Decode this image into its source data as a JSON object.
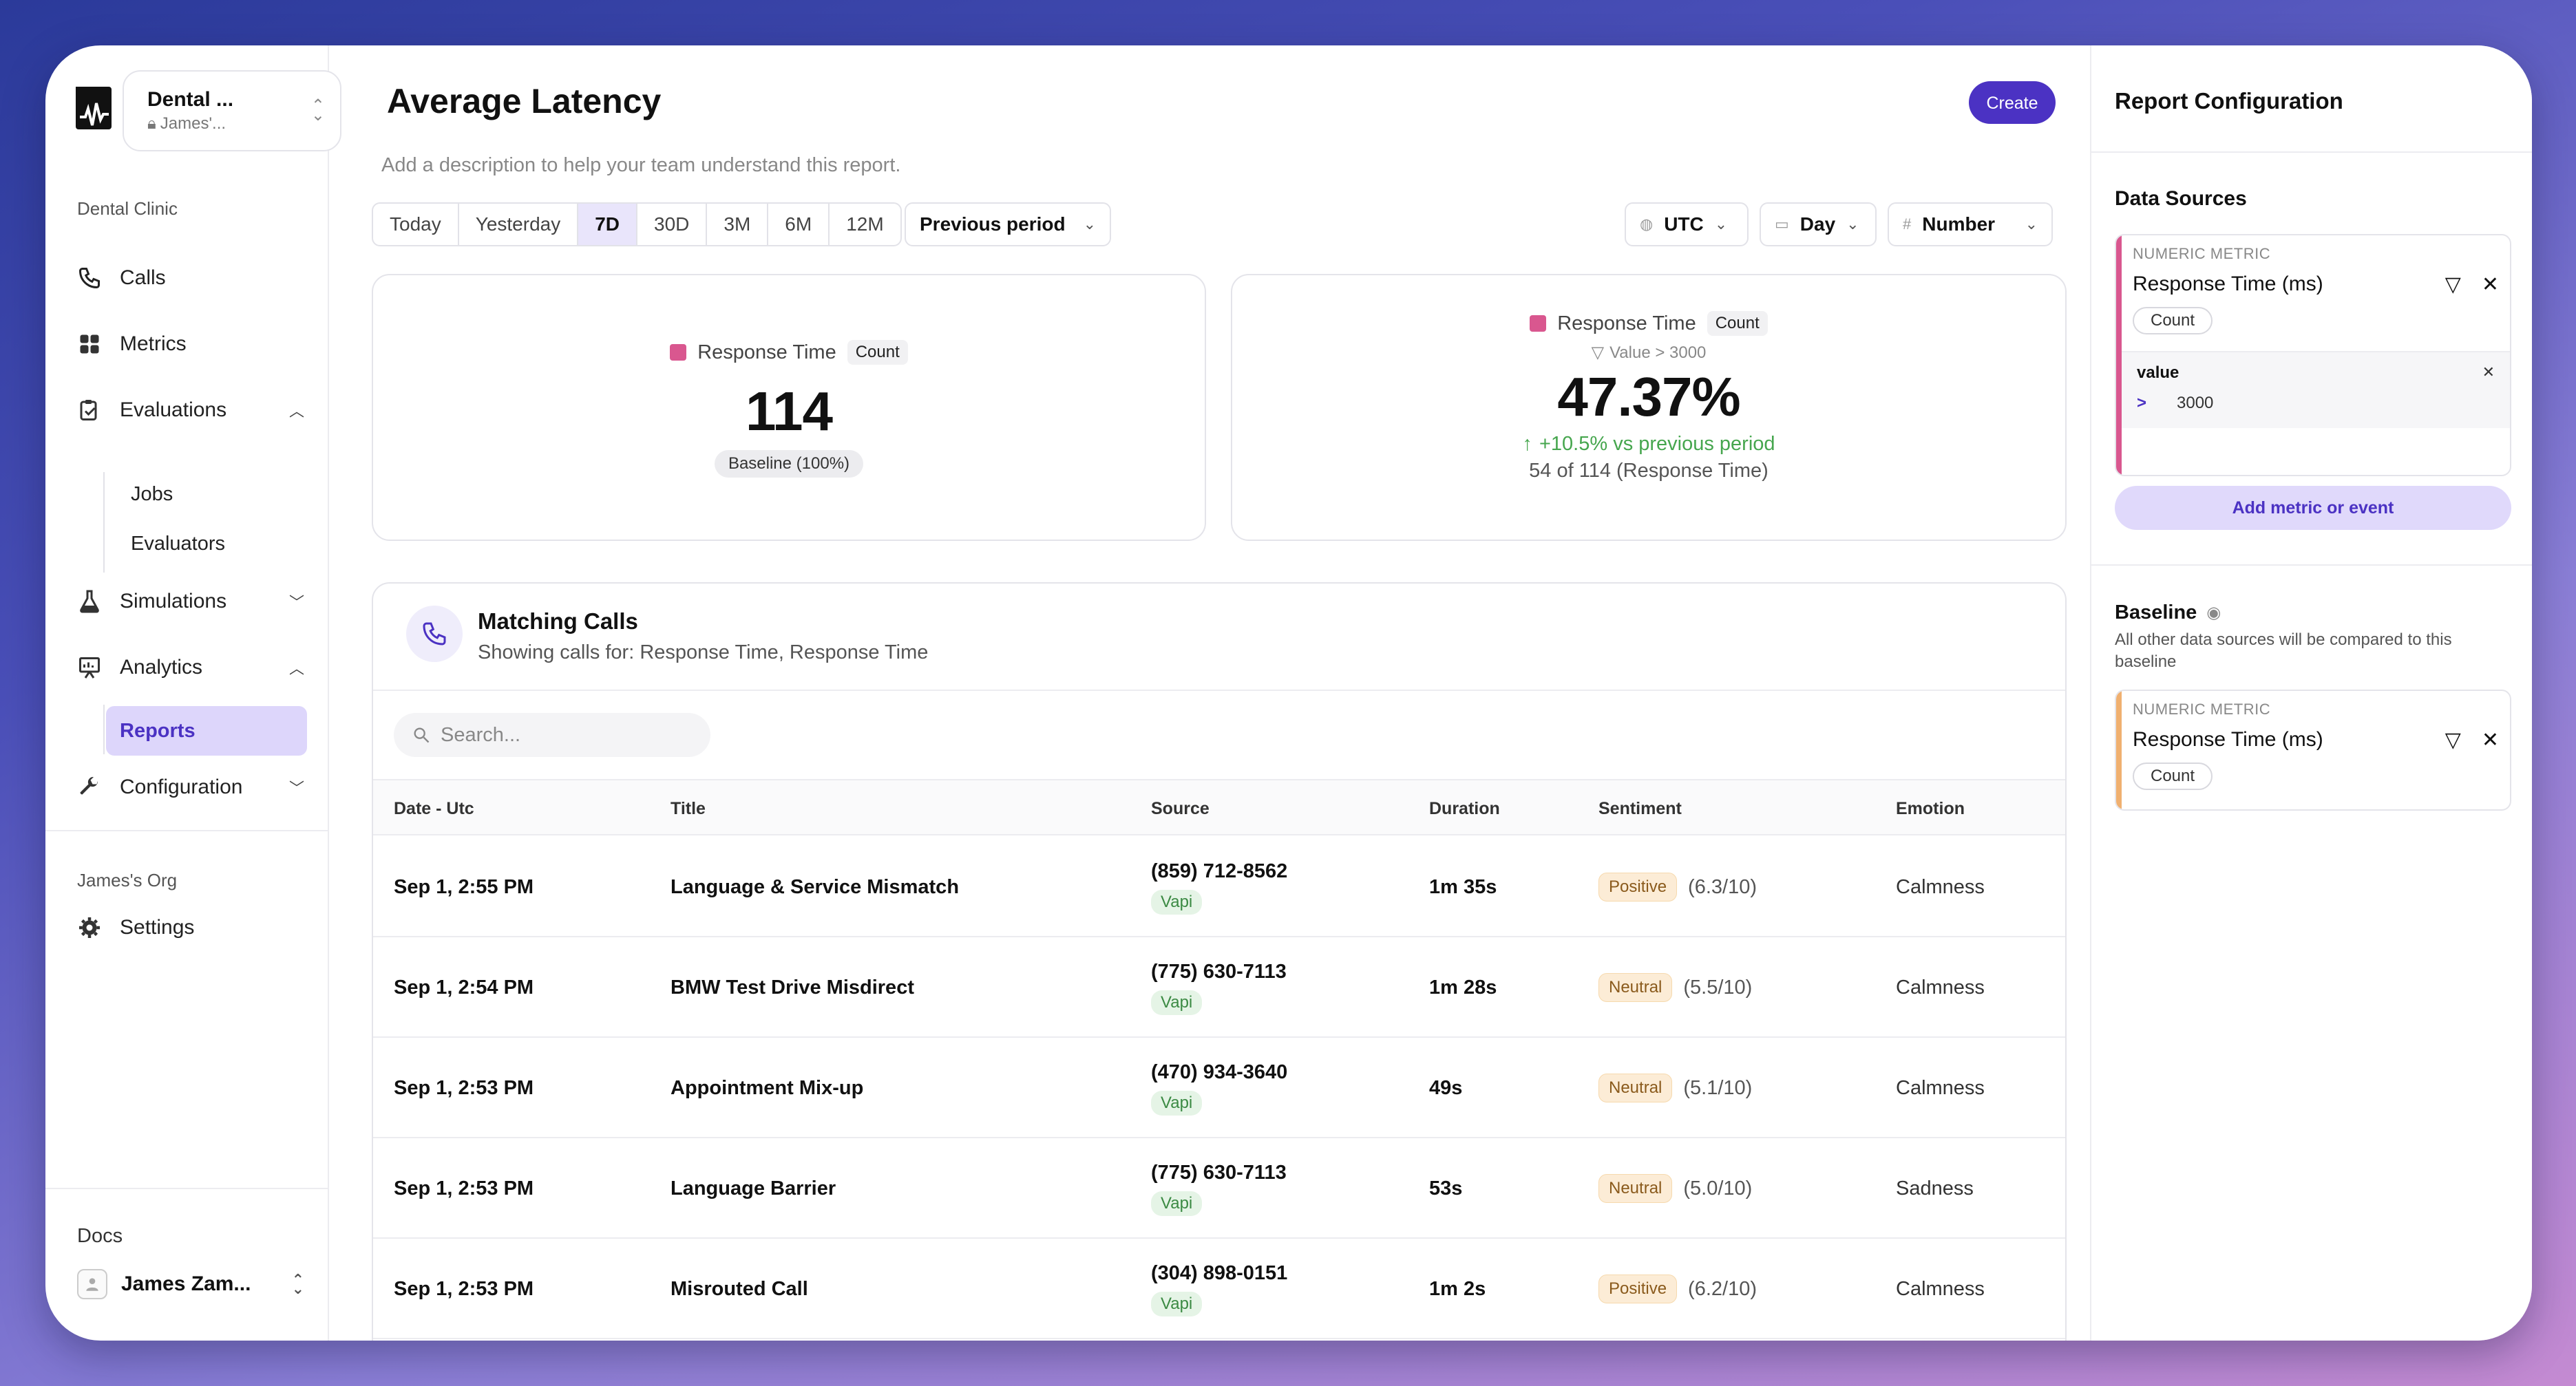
{
  "workspace": {
    "name": "Dental ...",
    "owner": "James'..."
  },
  "sidebar": {
    "section_label": "Dental Clinic",
    "items": [
      {
        "label": "Calls"
      },
      {
        "label": "Metrics"
      },
      {
        "label": "Evaluations"
      },
      {
        "label": "Simulations"
      },
      {
        "label": "Analytics"
      },
      {
        "label": "Configuration"
      }
    ],
    "evaluations_sub": [
      "Jobs",
      "Evaluators"
    ],
    "analytics_sub": [
      "Reports"
    ],
    "org_label": "James's Org",
    "settings_label": "Settings",
    "docs_label": "Docs",
    "user_name": "James Zam..."
  },
  "header": {
    "title": "Average Latency",
    "description_placeholder": "Add a description to help your team understand this report.",
    "create_label": "Create"
  },
  "range_tabs": [
    "Today",
    "Yesterday",
    "7D",
    "30D",
    "3M",
    "6M",
    "12M"
  ],
  "active_range": "7D",
  "compare_select": "Previous period",
  "timezone_select": "UTC",
  "granularity_select": "Day",
  "format_select": "Number",
  "card_left": {
    "metric": "Response Time",
    "agg": "Count",
    "value": "114",
    "baseline": "Baseline (100%)"
  },
  "card_right": {
    "metric": "Response Time",
    "agg": "Count",
    "filter": "Value > 3000",
    "value": "47.37%",
    "delta": "+10.5% vs previous period",
    "ratio": "54 of 114 (Response Time)"
  },
  "matching_calls": {
    "title": "Matching Calls",
    "subtitle": "Showing calls for: Response Time, Response Time",
    "search_placeholder": "Search...",
    "columns": [
      "Date - Utc",
      "Title",
      "Source",
      "Duration",
      "Sentiment",
      "Emotion"
    ],
    "rows": [
      {
        "date": "Sep 1, 2:55 PM",
        "title": "Language & Service Mismatch",
        "phone": "(859) 712-8562",
        "provider": "Vapi",
        "duration": "1m 35s",
        "sentiment": "Positive",
        "score": "(6.3/10)",
        "emotion": "Calmness"
      },
      {
        "date": "Sep 1, 2:54 PM",
        "title": "BMW Test Drive Misdirect",
        "phone": "(775) 630-7113",
        "provider": "Vapi",
        "duration": "1m 28s",
        "sentiment": "Neutral",
        "score": "(5.5/10)",
        "emotion": "Calmness"
      },
      {
        "date": "Sep 1, 2:53 PM",
        "title": "Appointment Mix-up",
        "phone": "(470) 934-3640",
        "provider": "Vapi",
        "duration": "49s",
        "sentiment": "Neutral",
        "score": "(5.1/10)",
        "emotion": "Calmness"
      },
      {
        "date": "Sep 1, 2:53 PM",
        "title": "Language Barrier",
        "phone": "(775) 630-7113",
        "provider": "Vapi",
        "duration": "53s",
        "sentiment": "Neutral",
        "score": "(5.0/10)",
        "emotion": "Sadness"
      },
      {
        "date": "Sep 1, 2:53 PM",
        "title": "Misrouted Call",
        "phone": "(304) 898-0151",
        "provider": "Vapi",
        "duration": "1m 2s",
        "sentiment": "Positive",
        "score": "(6.2/10)",
        "emotion": "Calmness"
      }
    ]
  },
  "config": {
    "title": "Report Configuration",
    "data_sources_label": "Data Sources",
    "source": {
      "type": "NUMERIC METRIC",
      "name": "Response Time (ms)",
      "agg": "Count",
      "filter_field": "value",
      "filter_op": ">",
      "filter_value": "3000"
    },
    "add_label": "Add metric or event",
    "baseline_label": "Baseline",
    "baseline_desc": "All other data sources will be compared to this baseline",
    "baseline_source": {
      "type": "NUMERIC METRIC",
      "name": "Response Time (ms)",
      "agg": "Count"
    }
  },
  "colors": {
    "accent": "#4b32c3",
    "metric_pink": "#d9578f",
    "baseline_orange": "#f0b070"
  }
}
